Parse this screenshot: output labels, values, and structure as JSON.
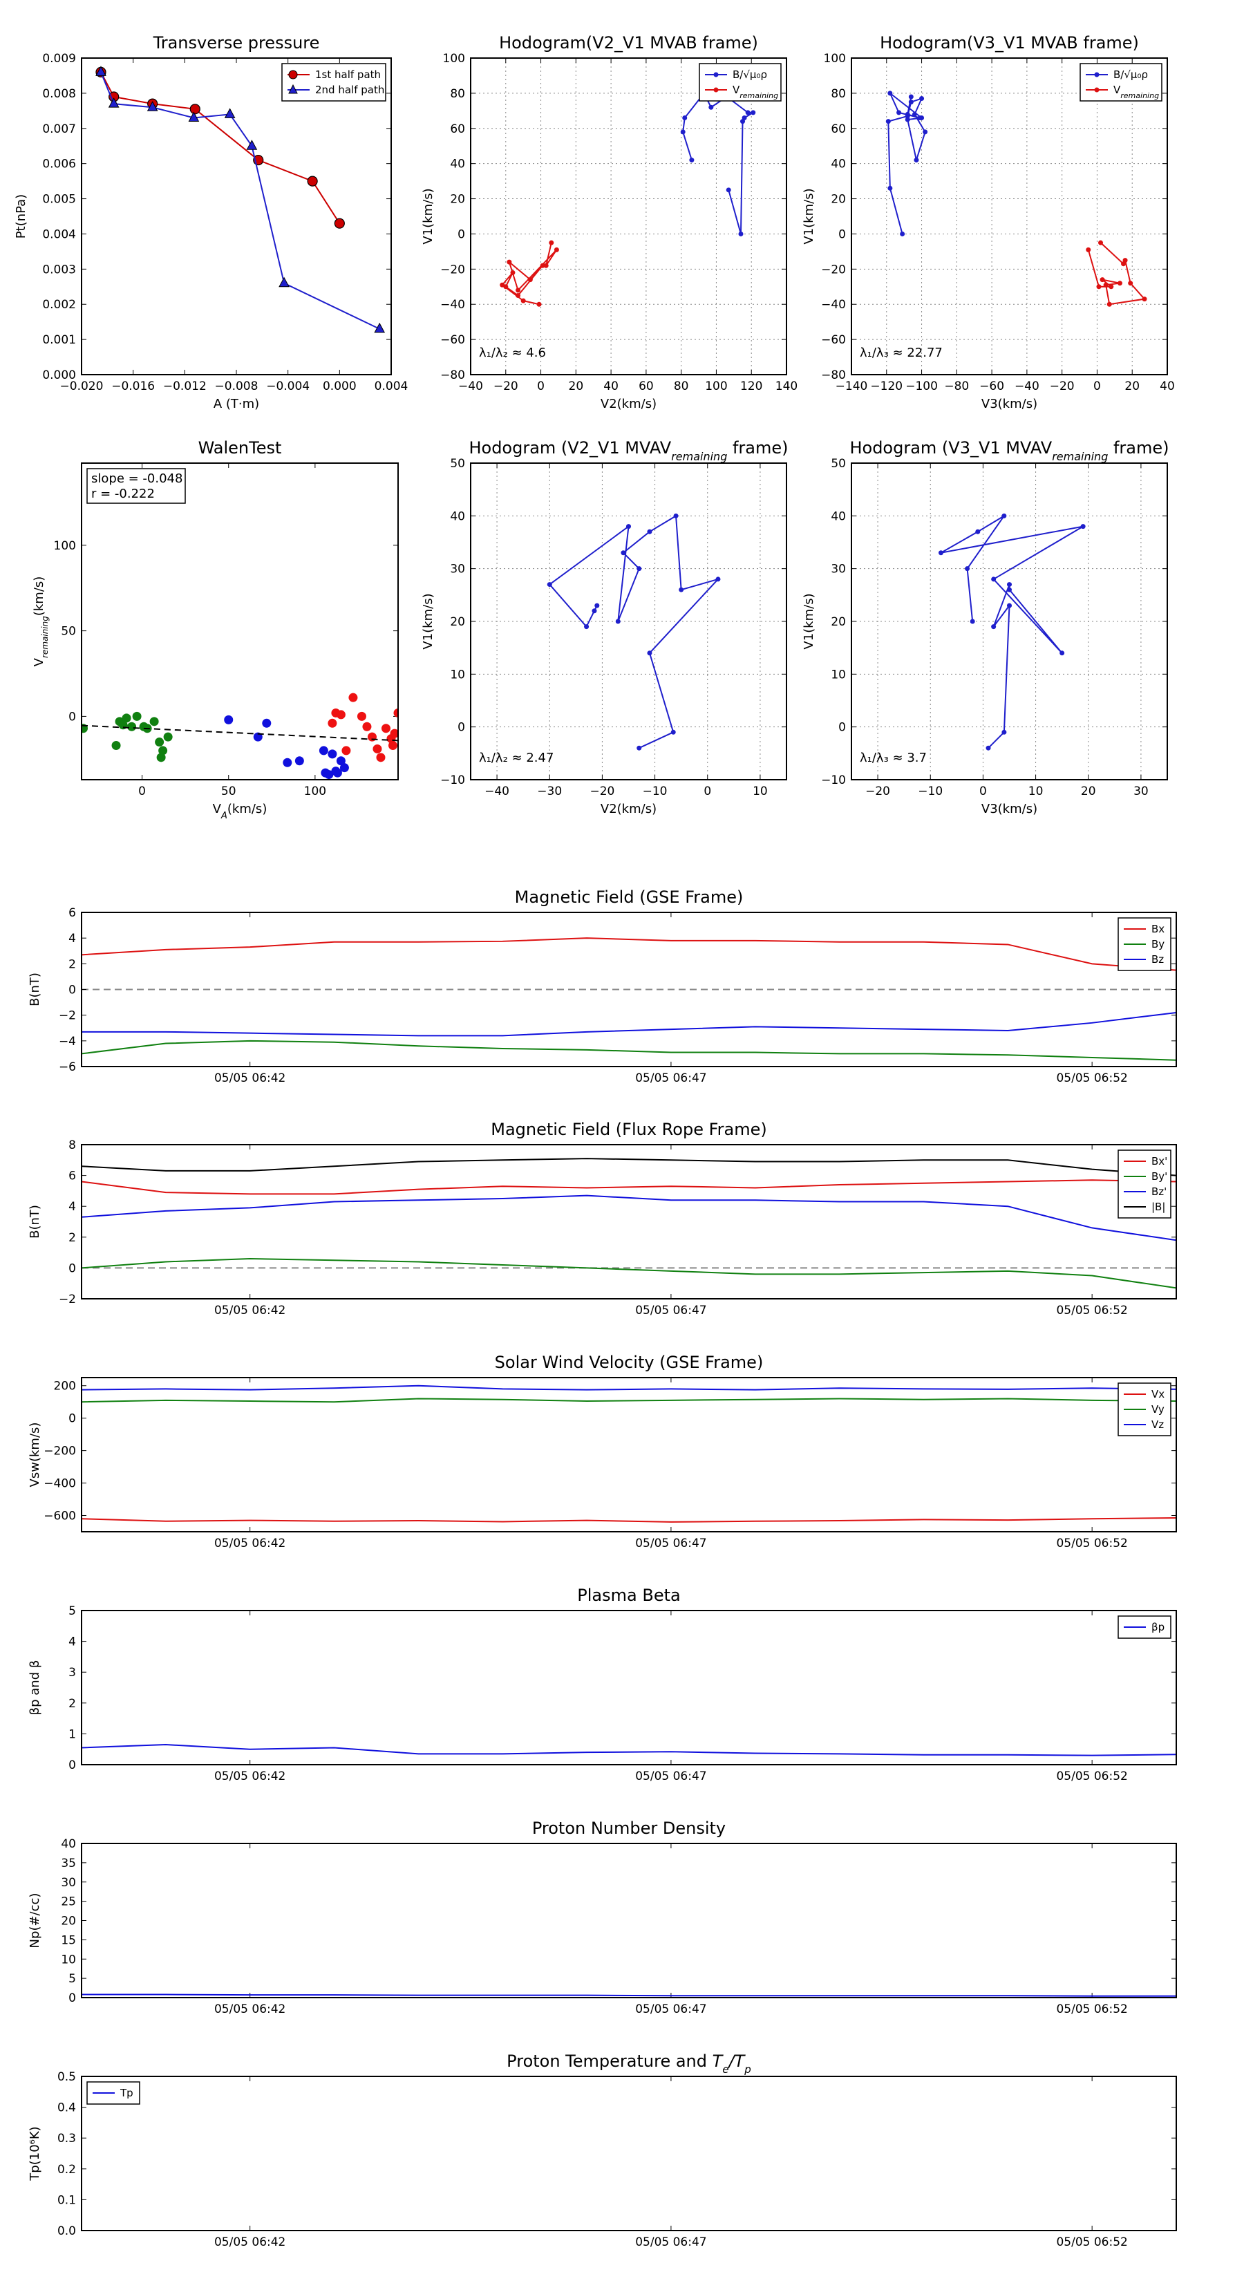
{
  "chart_data": [
    {
      "id": "transverse-pressure",
      "type": "line",
      "title": "Transverse pressure",
      "xlabel": "A (T·m)",
      "ylabel": "Pt(nPa)",
      "xlim": [
        -0.02,
        0.004
      ],
      "ylim": [
        0.0,
        0.009
      ],
      "xticks": [
        -0.02,
        -0.016,
        -0.012,
        -0.008,
        -0.004,
        0.0,
        0.004
      ],
      "xtick_labels": [
        "−0.020",
        "−0.016",
        "−0.012",
        "−0.008",
        "−0.004",
        "0.000",
        "0.004"
      ],
      "yticks": [
        0,
        0.001,
        0.002,
        0.003,
        0.004,
        0.005,
        0.006,
        0.007,
        0.008,
        0.009
      ],
      "ytick_labels": [
        "0.000",
        "0.001",
        "0.002",
        "0.003",
        "0.004",
        "0.005",
        "0.006",
        "0.007",
        "0.008",
        "0.009"
      ],
      "grid": false,
      "legend": "top-right",
      "series": [
        {
          "name": "1st half path",
          "color": "#cc0000",
          "marker": "circle",
          "x": [
            -0.0185,
            -0.0175,
            -0.0145,
            -0.0112,
            -0.0063,
            -0.0021,
            0.0
          ],
          "y": [
            0.0086,
            0.0079,
            0.0077,
            0.00755,
            0.0061,
            0.0055,
            0.0043
          ]
        },
        {
          "name": "2nd half path",
          "color": "#1f1fcc",
          "marker": "triangle",
          "x": [
            -0.0185,
            -0.0175,
            -0.0145,
            -0.0113,
            -0.0085,
            -0.0068,
            -0.0043,
            0.0031
          ],
          "y": [
            0.0086,
            0.0077,
            0.0076,
            0.0073,
            0.0074,
            0.0065,
            0.0026,
            0.0013
          ]
        }
      ]
    },
    {
      "id": "hodogram-v2v1-mvab",
      "type": "line",
      "title": "Hodogram(V2_V1 MVAB frame)",
      "xlabel": "V2(km/s)",
      "ylabel": "V1(km/s)",
      "xlim": [
        -40,
        140
      ],
      "ylim": [
        -80,
        100
      ],
      "xticks": [
        -40,
        -20,
        0,
        20,
        40,
        60,
        80,
        100,
        120,
        140
      ],
      "yticks": [
        -80,
        -60,
        -40,
        -20,
        0,
        20,
        40,
        60,
        80,
        100
      ],
      "grid": true,
      "legend": "top-right",
      "annotation": "λ₁/λ₂ ≈ 4.6",
      "series": [
        {
          "name": "B/√μ₀ρ",
          "color": "#1f1fcc",
          "marker": "dot",
          "x": [
            86,
            81,
            82,
            93,
            97,
            106,
            118,
            121,
            116,
            115,
            114,
            107
          ],
          "y": [
            42,
            58,
            66,
            80,
            72,
            78,
            69,
            69,
            66,
            64,
            0,
            25
          ]
        },
        {
          "name": "V_remaining",
          "color": "#dd1111",
          "marker": "dot",
          "x": [
            6,
            3,
            9,
            -13,
            -18,
            -6,
            1,
            -13,
            -20,
            -16,
            -22,
            -10,
            -1
          ],
          "y": [
            -5,
            -18,
            -9,
            -32,
            -16,
            -26,
            -18,
            -35,
            -30,
            -22,
            -29,
            -38,
            -40
          ]
        }
      ]
    },
    {
      "id": "hodogram-v3v1-mvab",
      "type": "line",
      "title": "Hodogram(V3_V1 MVAB frame)",
      "xlabel": "V3(km/s)",
      "ylabel": "V1(km/s)",
      "xlim": [
        -140,
        40
      ],
      "ylim": [
        -80,
        100
      ],
      "xticks": [
        -140,
        -120,
        -100,
        -80,
        -60,
        -40,
        -20,
        0,
        20,
        40
      ],
      "yticks": [
        -80,
        -60,
        -40,
        -20,
        0,
        20,
        40,
        60,
        80,
        100
      ],
      "grid": true,
      "legend": "top-right",
      "annotation": "λ₁/λ₃ ≈ 22.77",
      "series": [
        {
          "name": "B/√μ₀ρ",
          "color": "#1f1fcc",
          "marker": "dot",
          "x": [
            -111,
            -118,
            -119,
            -108,
            -106,
            -100,
            -104,
            -98,
            -103,
            -108,
            -100,
            -118,
            -113,
            -101,
            -108,
            -106
          ],
          "y": [
            0,
            26,
            64,
            67,
            75,
            77,
            68,
            58,
            42,
            65,
            66,
            80,
            69,
            66,
            68,
            78
          ]
        },
        {
          "name": "V_remaining",
          "color": "#dd1111",
          "marker": "dot",
          "x": [
            2,
            15,
            16,
            19,
            27,
            7,
            5,
            13,
            3,
            8,
            1,
            -5
          ],
          "y": [
            -5,
            -17,
            -15,
            -28,
            -37,
            -40,
            -29,
            -28,
            -26,
            -30,
            -30,
            -9
          ]
        }
      ]
    },
    {
      "id": "walen-test",
      "type": "scatter",
      "title": "WalenTest",
      "xlabel": "V_A(km/s)",
      "ylabel": "V_remaining(km/s)",
      "xlim": [
        -35,
        148
      ],
      "ylim": [
        -37,
        148
      ],
      "xticks": [
        0,
        50,
        100
      ],
      "yticks": [
        0,
        50,
        100
      ],
      "grid": false,
      "annotation_lines": [
        "slope = -0.048",
        "r = -0.222"
      ],
      "fit": {
        "slope": -0.048,
        "intercept": -7
      },
      "series": [
        {
          "name": "",
          "color": "#108010",
          "x": [
            -34,
            -15,
            -13,
            -11,
            -9,
            -6,
            -3,
            1,
            3,
            7,
            10,
            11,
            12,
            15
          ],
          "y": [
            -7,
            -17,
            -3,
            -5,
            -1,
            -6,
            0,
            -6,
            -7,
            -3,
            -15,
            -24,
            -20,
            -12
          ]
        },
        {
          "name": "",
          "color": "#1010dd",
          "x": [
            50,
            67,
            72,
            84,
            91,
            105,
            106,
            108,
            110,
            112,
            113,
            115,
            117
          ],
          "y": [
            -2,
            -12,
            -4,
            -27,
            -26,
            -20,
            -33,
            -34,
            -22,
            -32,
            -33,
            -26,
            -30
          ]
        },
        {
          "name": "",
          "color": "#ee1111",
          "x": [
            110,
            112,
            115,
            118,
            122,
            127,
            130,
            133,
            136,
            138,
            141,
            144,
            146,
            145,
            148
          ],
          "y": [
            -4,
            2,
            1,
            -20,
            11,
            0,
            -6,
            -12,
            -19,
            -24,
            -7,
            -13,
            -10,
            -17,
            2
          ]
        }
      ]
    },
    {
      "id": "hodogram-v2v1-mvav",
      "type": "line",
      "title": "Hodogram (V2_V1 MVAV_remaining frame)",
      "xlabel": "V2(km/s)",
      "ylabel": "V1(km/s)",
      "xlim": [
        -45,
        15
      ],
      "ylim": [
        -10,
        50
      ],
      "xticks": [
        -40,
        -30,
        -20,
        -10,
        0,
        10
      ],
      "yticks": [
        -10,
        0,
        10,
        20,
        30,
        40,
        50
      ],
      "grid": true,
      "annotation": "λ₁/λ₂ ≈ 2.47",
      "series": [
        {
          "name": "",
          "color": "#1f1fcc",
          "marker": "dot",
          "x": [
            -13,
            -6.5,
            -11,
            2,
            -5,
            -6,
            -11,
            -16,
            -13,
            -17,
            -15,
            -30,
            -23,
            -21,
            -21.5
          ],
          "y": [
            -4,
            -1,
            14,
            28,
            26,
            40,
            37,
            33,
            30,
            20,
            38,
            27,
            19,
            23,
            22
          ]
        }
      ]
    },
    {
      "id": "hodogram-v3v1-mvav",
      "type": "line",
      "title": "Hodogram (V3_V1 MVAV_remaining frame)",
      "xlabel": "V3(km/s)",
      "ylabel": "V1(km/s)",
      "xlim": [
        -25,
        35
      ],
      "ylim": [
        -10,
        50
      ],
      "xticks": [
        -20,
        -10,
        0,
        10,
        20,
        30
      ],
      "yticks": [
        -10,
        0,
        10,
        20,
        30,
        40,
        50
      ],
      "grid": true,
      "annotation": "λ₁/λ₃ ≈ 3.7",
      "series": [
        {
          "name": "",
          "color": "#1f1fcc",
          "marker": "dot",
          "x": [
            1,
            4,
            5,
            2,
            5,
            5,
            15,
            2,
            19,
            -8,
            -1,
            4,
            -3,
            -2
          ],
          "y": [
            -4,
            -1,
            23,
            19,
            27,
            26,
            14,
            28,
            38,
            33,
            37,
            40,
            30,
            20
          ]
        }
      ]
    },
    {
      "id": "magnetic-field-gse",
      "type": "line",
      "title": "Magnetic Field (GSE Frame)",
      "ylabel": "B(nT)",
      "xlim": [
        0,
        13
      ],
      "ylim": [
        -6,
        6
      ],
      "yticks": [
        -6,
        -4,
        -2,
        0,
        2,
        4,
        6
      ],
      "xticks": [
        2,
        7,
        12
      ],
      "xtick_labels": [
        "05/05 06:42",
        "05/05 06:47",
        "05/05 06:52"
      ],
      "zero_line": true,
      "legend": "top-right",
      "x": [
        0,
        1,
        2,
        3,
        4,
        5,
        6,
        7,
        8,
        9,
        10,
        11,
        12,
        13
      ],
      "series": [
        {
          "name": "Bx",
          "color": "#dd1111",
          "values": [
            2.7,
            3.1,
            3.3,
            3.7,
            3.7,
            3.75,
            4.0,
            3.8,
            3.8,
            3.7,
            3.7,
            3.5,
            2.0,
            1.5
          ]
        },
        {
          "name": "By",
          "color": "#108010",
          "values": [
            -5.0,
            -4.2,
            -4.0,
            -4.1,
            -4.4,
            -4.6,
            -4.7,
            -4.9,
            -4.9,
            -5.0,
            -5.0,
            -5.1,
            -5.3,
            -5.5
          ]
        },
        {
          "name": "Bz",
          "color": "#1010dd",
          "values": [
            -3.3,
            -3.3,
            -3.4,
            -3.5,
            -3.6,
            -3.6,
            -3.3,
            -3.1,
            -2.9,
            -3.0,
            -3.1,
            -3.2,
            -2.6,
            -1.8
          ]
        }
      ]
    },
    {
      "id": "magnetic-field-flux-rope",
      "type": "line",
      "title": "Magnetic Field (Flux Rope Frame)",
      "ylabel": "B(nT)",
      "xlim": [
        0,
        13
      ],
      "ylim": [
        -2,
        8
      ],
      "yticks": [
        -2,
        0,
        2,
        4,
        6,
        8
      ],
      "xticks": [
        2,
        7,
        12
      ],
      "xtick_labels": [
        "05/05 06:42",
        "05/05 06:47",
        "05/05 06:52"
      ],
      "zero_line": true,
      "legend": "top-right",
      "x": [
        0,
        1,
        2,
        3,
        4,
        5,
        6,
        7,
        8,
        9,
        10,
        11,
        12,
        13
      ],
      "series": [
        {
          "name": "Bx'",
          "color": "#dd1111",
          "values": [
            5.6,
            4.9,
            4.8,
            4.8,
            5.1,
            5.3,
            5.2,
            5.3,
            5.2,
            5.4,
            5.5,
            5.6,
            5.7,
            5.6
          ]
        },
        {
          "name": "By'",
          "color": "#108010",
          "values": [
            0.0,
            0.4,
            0.6,
            0.5,
            0.4,
            0.2,
            0.0,
            -0.2,
            -0.4,
            -0.4,
            -0.3,
            -0.2,
            -0.5,
            -1.3
          ]
        },
        {
          "name": "Bz'",
          "color": "#1010dd",
          "values": [
            3.3,
            3.7,
            3.9,
            4.3,
            4.4,
            4.5,
            4.7,
            4.4,
            4.4,
            4.3,
            4.3,
            4.0,
            2.6,
            1.8
          ]
        },
        {
          "name": "|B|",
          "color": "#000000",
          "values": [
            6.6,
            6.3,
            6.3,
            6.6,
            6.9,
            7.0,
            7.1,
            7.0,
            6.9,
            6.9,
            7.0,
            7.0,
            6.4,
            6.0
          ]
        }
      ]
    },
    {
      "id": "solar-wind-velocity",
      "type": "line",
      "title": "Solar Wind Velocity (GSE Frame)",
      "ylabel": "Vsw(km/s)",
      "xlim": [
        0,
        13
      ],
      "ylim": [
        -700,
        250
      ],
      "yticks": [
        -600,
        -400,
        -200,
        0,
        200
      ],
      "ytick_labels": [
        "−600",
        "−400",
        "−200",
        "0",
        "200"
      ],
      "xticks": [
        2,
        7,
        12
      ],
      "xtick_labels": [
        "05/05 06:42",
        "05/05 06:47",
        "05/05 06:52"
      ],
      "legend": "top-right",
      "x": [
        0,
        1,
        2,
        3,
        4,
        5,
        6,
        7,
        8,
        9,
        10,
        11,
        12,
        13
      ],
      "series": [
        {
          "name": "Vx",
          "color": "#dd1111",
          "values": [
            -620,
            -635,
            -630,
            -635,
            -632,
            -638,
            -630,
            -640,
            -635,
            -632,
            -625,
            -628,
            -620,
            -615
          ]
        },
        {
          "name": "Vy",
          "color": "#108010",
          "values": [
            100,
            110,
            105,
            100,
            120,
            115,
            105,
            110,
            115,
            120,
            115,
            120,
            110,
            105
          ]
        },
        {
          "name": "Vz",
          "color": "#1010dd",
          "values": [
            175,
            180,
            175,
            185,
            200,
            180,
            175,
            180,
            175,
            185,
            180,
            178,
            185,
            178
          ]
        }
      ]
    },
    {
      "id": "plasma-beta",
      "type": "line",
      "title": "Plasma Beta",
      "ylabel": "βp and β",
      "xlim": [
        0,
        13
      ],
      "ylim": [
        0,
        5
      ],
      "yticks": [
        0,
        1,
        2,
        3,
        4,
        5
      ],
      "xticks": [
        2,
        7,
        12
      ],
      "xtick_labels": [
        "05/05 06:42",
        "05/05 06:47",
        "05/05 06:52"
      ],
      "legend": "top-right",
      "x": [
        0,
        1,
        2,
        3,
        4,
        5,
        6,
        7,
        8,
        9,
        10,
        11,
        12,
        13
      ],
      "series": [
        {
          "name": "βp",
          "color": "#1010dd",
          "values": [
            0.55,
            0.65,
            0.5,
            0.55,
            0.35,
            0.35,
            0.4,
            0.42,
            0.37,
            0.35,
            0.32,
            0.32,
            0.3,
            0.33
          ]
        }
      ]
    },
    {
      "id": "proton-number-density",
      "type": "line",
      "title": "Proton Number Density",
      "ylabel": "Np(#/cc)",
      "xlim": [
        0,
        13
      ],
      "ylim": [
        0,
        40
      ],
      "yticks": [
        0,
        5,
        10,
        15,
        20,
        25,
        30,
        35,
        40
      ],
      "xticks": [
        2,
        7,
        12
      ],
      "xtick_labels": [
        "05/05 06:42",
        "05/05 06:47",
        "05/05 06:52"
      ],
      "x": [
        0,
        1,
        2,
        3,
        4,
        5,
        6,
        7,
        8,
        9,
        10,
        11,
        12,
        13
      ],
      "series": [
        {
          "name": "",
          "color": "#1010dd",
          "values": [
            0.8,
            0.8,
            0.7,
            0.7,
            0.6,
            0.6,
            0.6,
            0.5,
            0.5,
            0.5,
            0.5,
            0.5,
            0.4,
            0.4
          ]
        }
      ]
    },
    {
      "id": "proton-temperature",
      "type": "line",
      "title": "Proton Temperature and Te/Tp",
      "ylabel": "Tp(10⁶K)",
      "xlim": [
        0,
        13
      ],
      "ylim": [
        0,
        0.5
      ],
      "yticks": [
        0,
        0.1,
        0.2,
        0.3,
        0.4,
        0.5
      ],
      "ytick_labels": [
        "0.0",
        "0.1",
        "0.2",
        "0.3",
        "0.4",
        "0.5"
      ],
      "xticks": [
        2,
        7,
        12
      ],
      "xtick_labels": [
        "05/05 06:42",
        "05/05 06:47",
        "05/05 06:52"
      ],
      "legend": "top-left",
      "series": [
        {
          "name": "Tp",
          "color": "#1010dd",
          "values": []
        }
      ]
    }
  ]
}
